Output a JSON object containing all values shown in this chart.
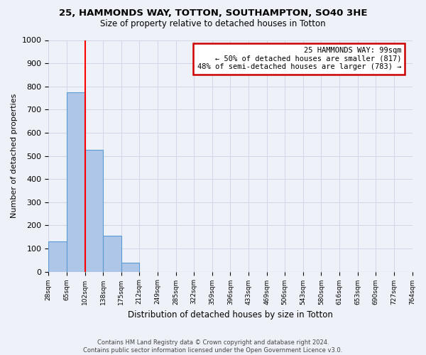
{
  "title": "25, HAMMONDS WAY, TOTTON, SOUTHAMPTON, SO40 3HE",
  "subtitle": "Size of property relative to detached houses in Totton",
  "xlabel": "Distribution of detached houses by size in Totton",
  "ylabel": "Number of detached properties",
  "bar_values": [
    130,
    775,
    525,
    155,
    40,
    0,
    0,
    0,
    0,
    0,
    0,
    0,
    0,
    0,
    0,
    0,
    0,
    0,
    0,
    0
  ],
  "bin_labels": [
    "28sqm",
    "65sqm",
    "102sqm",
    "138sqm",
    "175sqm",
    "212sqm",
    "249sqm",
    "285sqm",
    "322sqm",
    "359sqm",
    "396sqm",
    "433sqm",
    "469sqm",
    "506sqm",
    "543sqm",
    "580sqm",
    "616sqm",
    "653sqm",
    "690sqm",
    "727sqm",
    "764sqm"
  ],
  "bar_color": "#aec6e8",
  "bar_edge_color": "#5b9bd5",
  "ylim": [
    0,
    1000
  ],
  "yticks": [
    0,
    100,
    200,
    300,
    400,
    500,
    600,
    700,
    800,
    900,
    1000
  ],
  "annotation_title": "25 HAMMONDS WAY: 99sqm",
  "annotation_line1": "← 50% of detached houses are smaller (817)",
  "annotation_line2": "48% of semi-detached houses are larger (783) →",
  "annotation_box_color": "#ffffff",
  "annotation_box_edge": "#cc0000",
  "red_line_x": 1.5,
  "footer1": "Contains HM Land Registry data © Crown copyright and database right 2024.",
  "footer2": "Contains public sector information licensed under the Open Government Licence v3.0.",
  "grid_color": "#d0d8e8",
  "background_color": "#eef2f8"
}
